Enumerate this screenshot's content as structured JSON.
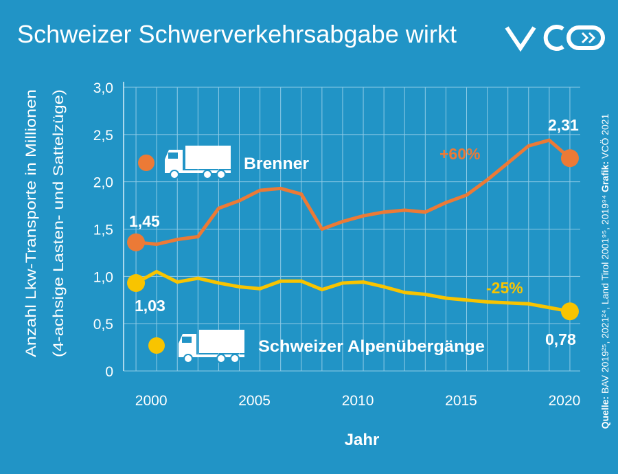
{
  "chart_data": {
    "type": "line",
    "title": "Schweizer Schwerverkehrsabgabe wirkt",
    "xlabel": "Jahr",
    "ylabel": [
      "Anzahl Lkw-Transporte in Millionen",
      "(4-achsige Lasten- und Sattelzüge)"
    ],
    "source": [
      "Quelle:",
      "BAV 2019²⁵, 2021²⁴, Land Tirol 2001⁹⁵, 2019⁹⁴",
      "Grafik:",
      "VCÖ 2021"
    ],
    "x": [
      1999,
      2000,
      2001,
      2002,
      2003,
      2004,
      2005,
      2006,
      2007,
      2008,
      2009,
      2010,
      2011,
      2012,
      2013,
      2014,
      2015,
      2016,
      2017,
      2018,
      2019,
      2020
    ],
    "series": [
      {
        "name": "Brenner",
        "color": "#ec7a36",
        "values": [
          1.36,
          1.34,
          1.39,
          1.42,
          1.72,
          1.8,
          1.91,
          1.93,
          1.87,
          1.5,
          1.58,
          1.64,
          1.68,
          1.7,
          1.68,
          1.78,
          1.86,
          2.02,
          2.2,
          2.38,
          2.44,
          2.25
        ]
      },
      {
        "name": "Schweizer Alpenübergänge",
        "color": "#f8c400",
        "values": [
          0.93,
          1.05,
          0.94,
          0.98,
          0.93,
          0.89,
          0.87,
          0.95,
          0.95,
          0.86,
          0.93,
          0.94,
          0.89,
          0.83,
          0.81,
          0.77,
          0.75,
          0.73,
          0.72,
          0.71,
          0.67,
          0.63
        ]
      }
    ],
    "annotations": [
      "1,45",
      "2,31",
      "+60%",
      "1,03",
      "0,78",
      "-25%"
    ],
    "xlim": [
      1998.4,
      2020.5
    ],
    "xticks": [
      2000,
      2005,
      2010,
      2015,
      2020
    ],
    "ylim": [
      0,
      3
    ],
    "yticks": [
      0,
      {
        "value": 0.5,
        "label": "0,5"
      },
      {
        "value": 1,
        "label": "1,0"
      },
      {
        "value": 1.5,
        "label": "1,5"
      },
      {
        "value": 2,
        "label": "2,0"
      },
      {
        "value": 2.5,
        "label": "2,5"
      },
      {
        "value": 3,
        "label": "3,0"
      }
    ],
    "grid": true
  }
}
